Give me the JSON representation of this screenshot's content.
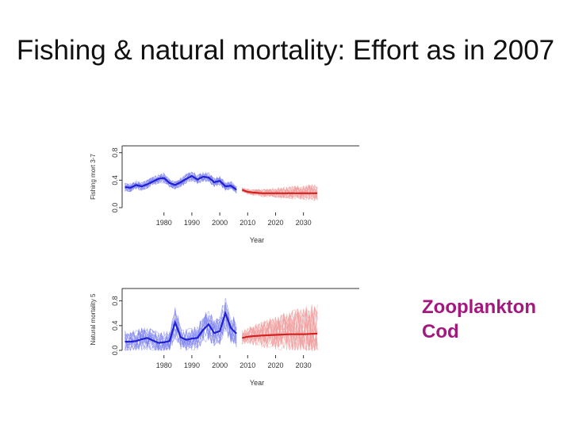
{
  "slide": {
    "title": "Fishing & natural mortality: Effort as in 2007"
  },
  "legend": {
    "items": [
      "Zooplankton",
      "Cod"
    ]
  },
  "colors": {
    "historical": "#1f1fd6",
    "historical_light": "#7f84ef",
    "projection": "#d42020",
    "projection_light": "#f0a0a0",
    "legend_text": "#a3177f"
  },
  "chart_data": [
    {
      "type": "line",
      "panel": "top",
      "xlabel": "Year",
      "ylabel": "Fishing mort 3-7",
      "xlim": [
        1965,
        2050
      ],
      "ylim": [
        0,
        0.9
      ],
      "xticks": [
        "1980",
        "1990",
        "2000",
        "2010",
        "2020",
        "2030"
      ],
      "yticks": [
        "0.0",
        "0.4",
        "0.8"
      ],
      "series": [
        {
          "name": "historical",
          "x": [
            1966,
            1968,
            1970,
            1972,
            1974,
            1976,
            1978,
            1980,
            1982,
            1984,
            1986,
            1988,
            1990,
            1992,
            1994,
            1996,
            1998,
            2000,
            2002,
            2004,
            2006
          ],
          "values": [
            0.3,
            0.29,
            0.33,
            0.31,
            0.34,
            0.38,
            0.42,
            0.43,
            0.36,
            0.33,
            0.37,
            0.42,
            0.46,
            0.41,
            0.45,
            0.44,
            0.37,
            0.39,
            0.31,
            0.32,
            0.26
          ]
        },
        {
          "name": "projection",
          "x": [
            2008,
            2010,
            2012,
            2015,
            2020,
            2025,
            2030,
            2035
          ],
          "values": [
            0.26,
            0.23,
            0.22,
            0.21,
            0.21,
            0.21,
            0.21,
            0.21
          ]
        }
      ]
    },
    {
      "type": "line",
      "panel": "bottom",
      "xlabel": "Year",
      "ylabel": "Natural mortality 5",
      "xlim": [
        1965,
        2050
      ],
      "ylim": [
        0,
        1.0
      ],
      "xticks": [
        "1980",
        "1990",
        "2000",
        "2010",
        "2020",
        "2030"
      ],
      "yticks": [
        "0.0",
        "0.4",
        "0.8"
      ],
      "series": [
        {
          "name": "historical",
          "x": [
            1966,
            1968,
            1970,
            1972,
            1974,
            1976,
            1978,
            1980,
            1982,
            1984,
            1986,
            1988,
            1990,
            1992,
            1994,
            1996,
            1998,
            2000,
            2002,
            2004,
            2006
          ],
          "values": [
            0.14,
            0.14,
            0.15,
            0.18,
            0.2,
            0.16,
            0.12,
            0.13,
            0.15,
            0.45,
            0.21,
            0.17,
            0.19,
            0.2,
            0.33,
            0.42,
            0.28,
            0.31,
            0.6,
            0.36,
            0.27
          ]
        },
        {
          "name": "projection",
          "x": [
            2008,
            2010,
            2012,
            2015,
            2020,
            2025,
            2030,
            2035
          ],
          "values": [
            0.2,
            0.22,
            0.23,
            0.24,
            0.25,
            0.26,
            0.26,
            0.27
          ]
        }
      ]
    }
  ]
}
